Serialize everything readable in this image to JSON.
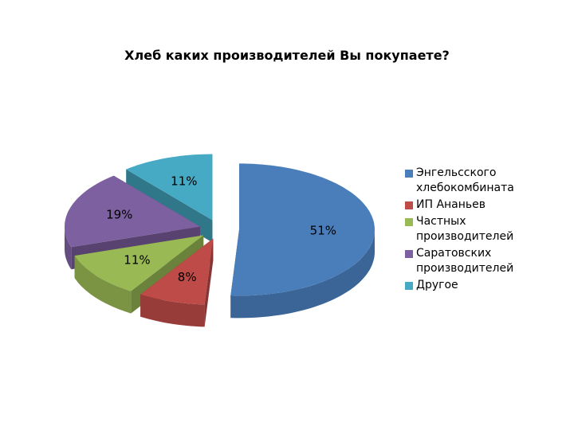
{
  "chart_data": {
    "type": "pie",
    "title": "Хлеб каких производителей Вы покупаете?",
    "categories": [
      "Энгельсского хлебокомбината",
      "ИП Ананьев",
      "Частных производителей",
      "Саратовских производителей",
      "Другое"
    ],
    "values": [
      51,
      8,
      11,
      19,
      11
    ],
    "value_labels": [
      "51%",
      "8%",
      "11%",
      "19%",
      "11%"
    ],
    "colors": [
      "#4a7ebb",
      "#be4b48",
      "#98b954",
      "#7d60a0",
      "#46aac5"
    ],
    "legend": "right"
  }
}
